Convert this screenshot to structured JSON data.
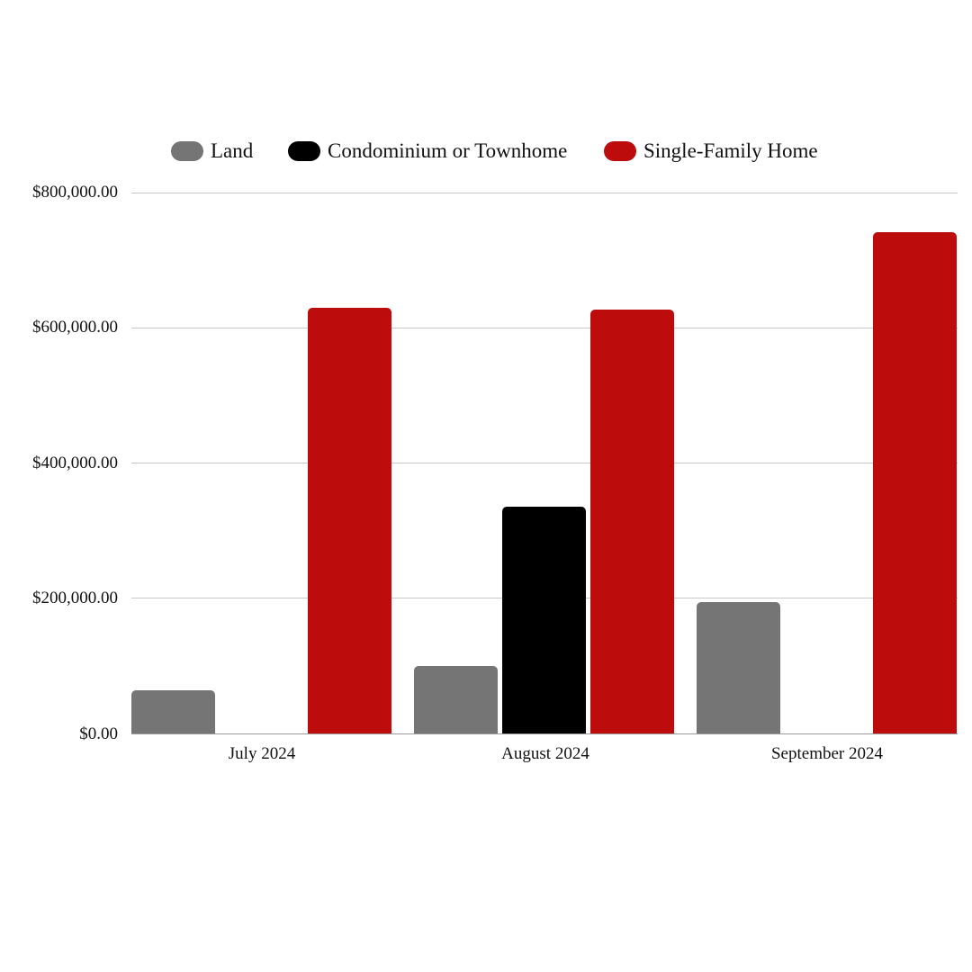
{
  "chart_data": {
    "type": "bar",
    "title": "",
    "xlabel": "",
    "ylabel": "",
    "categories": [
      "July 2024",
      "August 2024",
      "September 2024"
    ],
    "series": [
      {
        "name": "Land",
        "color": "#757575",
        "values": [
          64000,
          100000,
          194000
        ]
      },
      {
        "name": "Condominium or Townhome",
        "color": "#000000",
        "values": [
          0,
          335000,
          0
        ]
      },
      {
        "name": "Single-Family Home",
        "color": "#bd0c0c",
        "values": [
          630000,
          627000,
          741000
        ]
      }
    ],
    "ylim": [
      0,
      800000
    ],
    "y_ticks": [
      "$0.00",
      "$200,000.00",
      "$400,000.00",
      "$600,000.00",
      "$800,000.00"
    ],
    "grid": true,
    "legend_position": "top"
  },
  "legend": {
    "items": [
      {
        "label": "Land",
        "color": "#757575"
      },
      {
        "label": "Condominium or Townhome",
        "color": "#000000"
      },
      {
        "label": "Single-Family Home",
        "color": "#bd0c0c"
      }
    ]
  },
  "axis": {
    "y_labels": [
      "$800,000.00",
      "$600,000.00",
      "$400,000.00",
      "$200,000.00",
      "$0.00"
    ],
    "x_labels": [
      "July 2024",
      "August 2024",
      "September 2024"
    ]
  }
}
